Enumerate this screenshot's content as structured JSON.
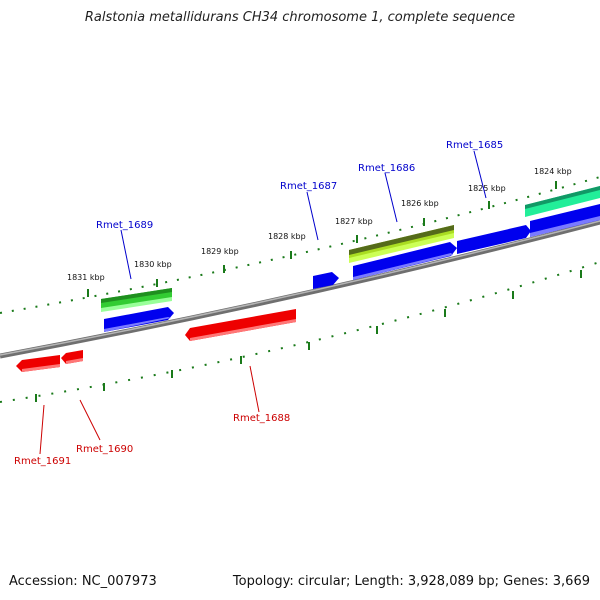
{
  "title": "Ralstonia metallidurans CH34 chromosome 1, complete sequence",
  "footer": {
    "accession": "Accession: NC_007973",
    "summary": "Topology: circular; Length: 3,928,089 bp; Genes: 3,669"
  },
  "scale": {
    "unit": "kbp",
    "tick_labels": [
      "1831 kbp",
      "1830 kbp",
      "1829 kbp",
      "1828 kbp",
      "1827 kbp",
      "1826 kbp",
      "1825 kbp",
      "1824 kbp"
    ]
  },
  "colors": {
    "backbone": "#8a8a8a",
    "forward_cds": "#0000ee",
    "reverse_cds": "#ee0000",
    "tick": "#1a7a1a",
    "forward_label": "#0000cc",
    "reverse_label": "#cc0000"
  },
  "genes": [
    {
      "name": "Rmet_1685",
      "strand": "forward"
    },
    {
      "name": "Rmet_1686",
      "strand": "forward"
    },
    {
      "name": "Rmet_1687",
      "strand": "forward"
    },
    {
      "name": "Rmet_1689",
      "strand": "forward"
    },
    {
      "name": "Rmet_1688",
      "strand": "reverse"
    },
    {
      "name": "Rmet_1690",
      "strand": "reverse"
    },
    {
      "name": "Rmet_1691",
      "strand": "reverse"
    }
  ]
}
